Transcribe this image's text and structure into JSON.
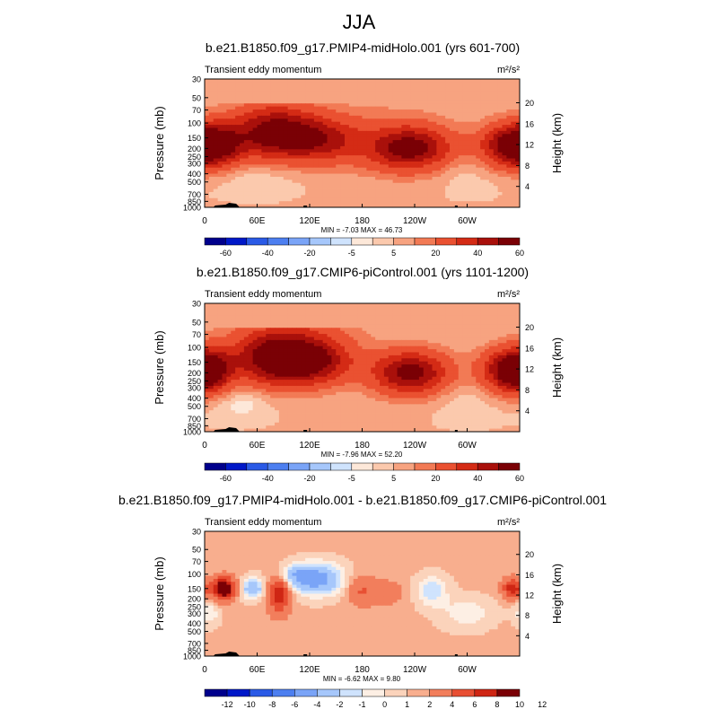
{
  "figure": {
    "title": "JJA"
  },
  "chart_data": [
    {
      "type": "heatmap",
      "title": "b.e21.B1850.f09_g17.PMIP4-midHolo.001 (yrs 601-700)",
      "subtitle": "Transient eddy momentum",
      "units": "m²/s²",
      "ylabel": "Pressure (mb)",
      "ylabel_right": "Height (km)",
      "x_ticks": [
        "0",
        "60E",
        "120E",
        "180",
        "120W",
        "60W"
      ],
      "x_values": [
        0,
        60,
        120,
        180,
        240,
        300
      ],
      "xlim": [
        0,
        360
      ],
      "y_ticks": [
        "30",
        "50",
        "70",
        "100",
        "150",
        "200",
        "250",
        "300",
        "400",
        "500",
        "700",
        "850",
        "1000"
      ],
      "y_values": [
        30,
        50,
        70,
        100,
        150,
        200,
        250,
        300,
        400,
        500,
        700,
        850,
        1000
      ],
      "ylim": [
        1000,
        30
      ],
      "height_ticks": [
        "20",
        "16",
        "12",
        "8",
        "4"
      ],
      "height_values": [
        20,
        16,
        12,
        8,
        4
      ],
      "stats": "MIN = -7.03  MAX = 46.73",
      "min": -7.03,
      "max": 46.73,
      "colorbar_labels": [
        "-60",
        "-40",
        "-20",
        "-5",
        "5",
        "20",
        "40",
        "60"
      ],
      "colorbar_levels": [
        -60,
        -50,
        -40,
        -30,
        -20,
        -10,
        -5,
        -1,
        1,
        5,
        10,
        20,
        30,
        40,
        50,
        60
      ],
      "features": [
        {
          "lon": 80,
          "p": 130,
          "value": 46,
          "dlon": 34,
          "dp": 0.5
        },
        {
          "lon": 135,
          "p": 160,
          "value": 25,
          "dlon": 30,
          "dp": 0.4
        },
        {
          "lon": 12,
          "p": 180,
          "value": 35,
          "dlon": 22,
          "dp": 0.4
        },
        {
          "lon": 235,
          "p": 200,
          "value": 42,
          "dlon": 32,
          "dp": 0.4
        },
        {
          "lon": 350,
          "p": 190,
          "value": 38,
          "dlon": 25,
          "dp": 0.4
        },
        {
          "lon": 190,
          "p": 150,
          "value": 8,
          "dlon": 60,
          "dp": 0.6
        },
        {
          "lon": 60,
          "p": 400,
          "value": -4,
          "dlon": 40,
          "dp": 0.35
        },
        {
          "lon": 300,
          "p": 350,
          "value": -3,
          "dlon": 30,
          "dp": 0.4
        }
      ]
    },
    {
      "type": "heatmap",
      "title": "b.e21.B1850.f09_g17.CMIP6-piControl.001 (yrs 1101-1200)",
      "subtitle": "Transient eddy momentum",
      "units": "m²/s²",
      "ylabel": "Pressure (mb)",
      "ylabel_right": "Height (km)",
      "x_ticks": [
        "0",
        "60E",
        "120E",
        "180",
        "120W",
        "60W"
      ],
      "x_values": [
        0,
        60,
        120,
        180,
        240,
        300
      ],
      "xlim": [
        0,
        360
      ],
      "y_ticks": [
        "30",
        "50",
        "70",
        "100",
        "150",
        "200",
        "250",
        "300",
        "400",
        "500",
        "700",
        "850",
        "1000"
      ],
      "y_values": [
        30,
        50,
        70,
        100,
        150,
        200,
        250,
        300,
        400,
        500,
        700,
        850,
        1000
      ],
      "ylim": [
        1000,
        30
      ],
      "height_ticks": [
        "20",
        "16",
        "12",
        "8",
        "4"
      ],
      "height_values": [
        20,
        16,
        12,
        8,
        4
      ],
      "stats": "MIN =  -7.96  MAX =  52.20",
      "min": -7.96,
      "max": 52.2,
      "colorbar_labels": [
        "-60",
        "-40",
        "-20",
        "-5",
        "5",
        "20",
        "40",
        "60"
      ],
      "colorbar_levels": [
        -60,
        -50,
        -40,
        -30,
        -20,
        -10,
        -5,
        -1,
        1,
        5,
        10,
        20,
        30,
        40,
        50,
        60
      ],
      "features": [
        {
          "lon": 85,
          "p": 135,
          "value": 52,
          "dlon": 36,
          "dp": 0.5
        },
        {
          "lon": 130,
          "p": 150,
          "value": 25,
          "dlon": 30,
          "dp": 0.4
        },
        {
          "lon": 5,
          "p": 190,
          "value": 40,
          "dlon": 18,
          "dp": 0.4
        },
        {
          "lon": 235,
          "p": 200,
          "value": 45,
          "dlon": 30,
          "dp": 0.4
        },
        {
          "lon": 345,
          "p": 190,
          "value": 35,
          "dlon": 22,
          "dp": 0.4
        },
        {
          "lon": 110,
          "p": 70,
          "value": 8,
          "dlon": 50,
          "dp": 0.5
        },
        {
          "lon": 40,
          "p": 400,
          "value": -5,
          "dlon": 30,
          "dp": 0.35
        },
        {
          "lon": 300,
          "p": 400,
          "value": -3,
          "dlon": 30,
          "dp": 0.4
        }
      ]
    },
    {
      "type": "heatmap",
      "title": "b.e21.B1850.f09_g17.PMIP4-midHolo.001 - b.e21.B1850.f09_g17.CMIP6-piControl.001",
      "subtitle": "Transient eddy momentum",
      "units": "m²/s²",
      "ylabel": "Pressure (mb)",
      "ylabel_right": "Height (km)",
      "x_ticks": [
        "0",
        "60E",
        "120E",
        "180",
        "120W",
        "60W"
      ],
      "x_values": [
        0,
        60,
        120,
        180,
        240,
        300
      ],
      "xlim": [
        0,
        360
      ],
      "y_ticks": [
        "30",
        "50",
        "70",
        "100",
        "150",
        "200",
        "250",
        "300",
        "400",
        "500",
        "700",
        "850",
        "1000"
      ],
      "y_values": [
        30,
        50,
        70,
        100,
        150,
        200,
        250,
        300,
        400,
        500,
        700,
        850,
        1000
      ],
      "ylim": [
        1000,
        30
      ],
      "height_ticks": [
        "20",
        "16",
        "12",
        "8",
        "4"
      ],
      "height_values": [
        20,
        16,
        12,
        8,
        4
      ],
      "stats": "MIN =  -6.62  MAX =  9.80",
      "min": -6.62,
      "max": 9.8,
      "colorbar_labels": [
        "-12",
        "-10",
        "-8",
        "-6",
        "-4",
        "-2",
        "-1",
        "0",
        "1",
        "2",
        "4",
        "6",
        "8",
        "10",
        "12"
      ],
      "colorbar_levels": [
        -12,
        -10,
        -8,
        -6,
        -4,
        -2,
        -1,
        0,
        1,
        2,
        4,
        6,
        8,
        10,
        12
      ],
      "features": [
        {
          "lon": 22,
          "p": 150,
          "value": 9.8,
          "dlon": 9,
          "dp": 0.22
        },
        {
          "lon": 55,
          "p": 150,
          "value": -5,
          "dlon": 9,
          "dp": 0.2
        },
        {
          "lon": 85,
          "p": 170,
          "value": 6,
          "dlon": 9,
          "dp": 0.4
        },
        {
          "lon": 128,
          "p": 115,
          "value": -6.6,
          "dlon": 20,
          "dp": 0.3
        },
        {
          "lon": 100,
          "p": 100,
          "value": -3,
          "dlon": 14,
          "dp": 0.2
        },
        {
          "lon": 180,
          "p": 160,
          "value": 3,
          "dlon": 12,
          "dp": 0.3
        },
        {
          "lon": 210,
          "p": 170,
          "value": 2,
          "dlon": 12,
          "dp": 0.25
        },
        {
          "lon": 260,
          "p": 160,
          "value": -3,
          "dlon": 12,
          "dp": 0.3
        },
        {
          "lon": 352,
          "p": 150,
          "value": 6,
          "dlon": 8,
          "dp": 0.2
        },
        {
          "lon": 300,
          "p": 300,
          "value": -2,
          "dlon": 20,
          "dp": 0.3
        },
        {
          "lon": 5,
          "p": 300,
          "value": -2,
          "dlon": 8,
          "dp": 0.25
        }
      ]
    }
  ]
}
